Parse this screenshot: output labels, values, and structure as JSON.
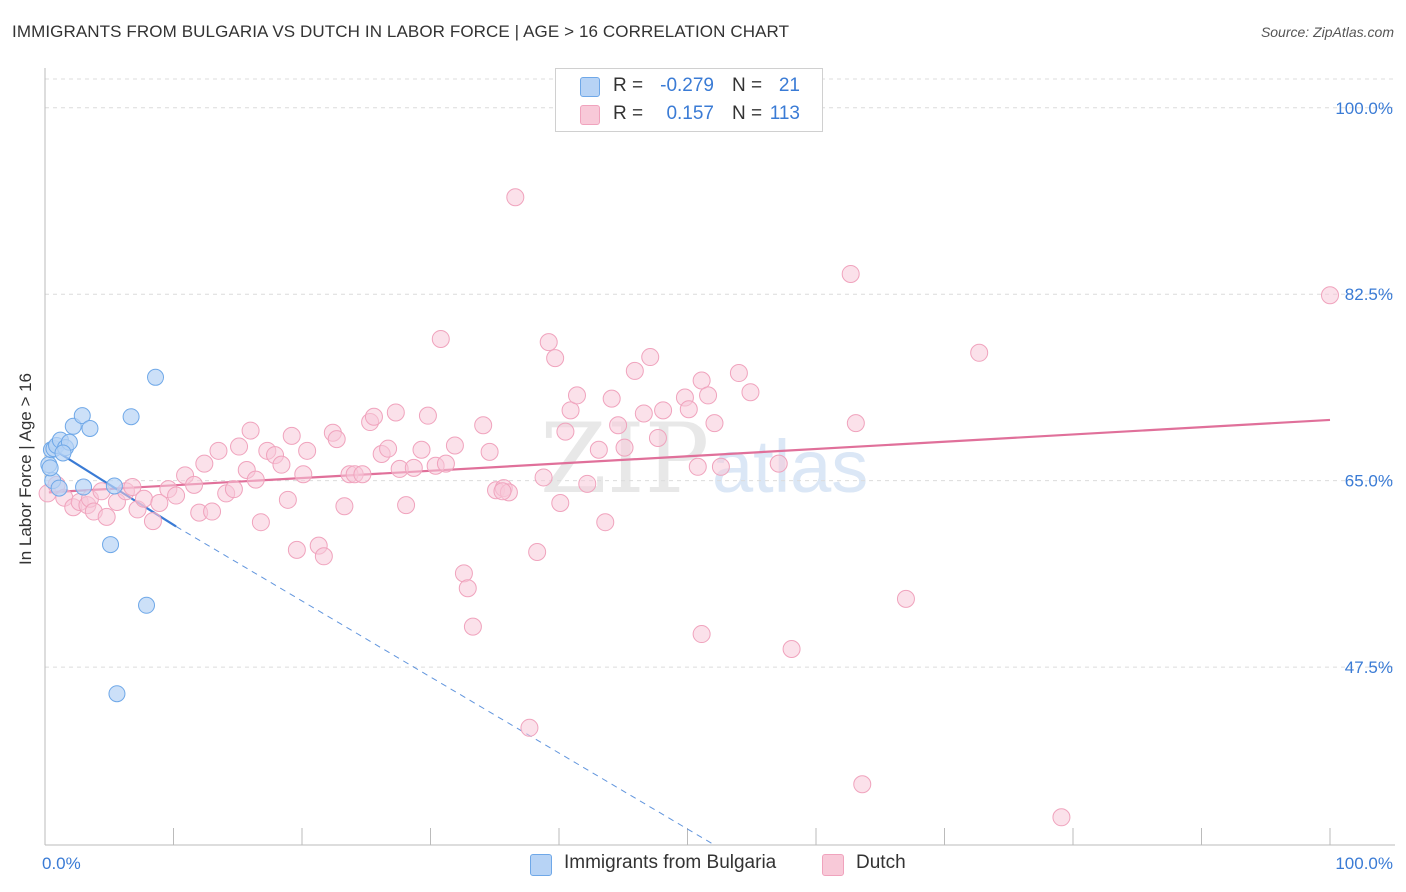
{
  "title": "IMMIGRANTS FROM BULGARIA VS DUTCH IN LABOR FORCE | AGE > 16 CORRELATION CHART",
  "source": "Source: ZipAtlas.com",
  "watermark": {
    "zip": "ZIP",
    "atlas": "atlas"
  },
  "colors": {
    "bulgaria": "#6fa8e8",
    "bulgaria_fill": "#b7d3f5",
    "bulgaria_line": "#3a7bd5",
    "dutch": "#f0a3bd",
    "dutch_fill": "#f8c9d8",
    "dutch_line": "#e0709a",
    "tick_label": "#3a7bd5",
    "grid": "#dcdcdc"
  },
  "legend": {
    "rows": [
      {
        "r_label": "R =",
        "r_value": "-0.279",
        "n_label": "N =",
        "n_value": "21"
      },
      {
        "r_label": "R =",
        "r_value": "0.157",
        "n_label": "N =",
        "n_value": "113"
      }
    ]
  },
  "bottom_legend": {
    "bulgaria": "Immigrants from Bulgaria",
    "dutch": "Dutch"
  },
  "chart_data": {
    "type": "scatter",
    "title": "IMMIGRANTS FROM BULGARIA VS DUTCH IN LABOR FORCE | AGE > 16 CORRELATION CHART",
    "xlabel": "",
    "ylabel": "In Labor Force | Age > 16",
    "xlim": [
      0,
      100
    ],
    "ylim": [
      30.8,
      102.7
    ],
    "x_tick_labels": [
      "0.0%",
      "100.0%"
    ],
    "y_ticks": [
      47.5,
      65.0,
      82.5,
      100.0
    ],
    "y_tick_labels": [
      "47.5%",
      "65.0%",
      "82.5%",
      "100.0%"
    ],
    "grid": true,
    "series": [
      {
        "name": "Immigrants from Bulgaria",
        "R": -0.279,
        "N": 21,
        "trend": {
          "x": [
            0.3,
            10.2
          ],
          "y": [
            68.2,
            60.7
          ]
        },
        "trend_dashed": {
          "x": [
            10.2,
            52.1
          ],
          "y": [
            60.7,
            30.8
          ]
        },
        "points": [
          [
            0.3,
            66.5
          ],
          [
            0.5,
            67.9
          ],
          [
            0.7,
            68.0
          ],
          [
            0.9,
            68.3
          ],
          [
            1.2,
            68.8
          ],
          [
            1.6,
            68.1
          ],
          [
            1.9,
            68.6
          ],
          [
            2.2,
            70.1
          ],
          [
            2.9,
            71.1
          ],
          [
            3.5,
            69.9
          ],
          [
            0.6,
            65.0
          ],
          [
            1.1,
            64.3
          ],
          [
            3.0,
            64.4
          ],
          [
            5.4,
            64.5
          ],
          [
            8.6,
            74.7
          ],
          [
            6.7,
            71.0
          ],
          [
            5.1,
            59.0
          ],
          [
            7.9,
            53.3
          ],
          [
            5.6,
            45.0
          ],
          [
            1.4,
            67.6
          ],
          [
            0.4,
            66.2
          ]
        ]
      },
      {
        "name": "Dutch",
        "R": 0.157,
        "N": 113,
        "trend": {
          "x": [
            0.3,
            100
          ],
          "y": [
            63.9,
            70.7
          ]
        },
        "points": [
          [
            0.2,
            63.8
          ],
          [
            0.9,
            64.6
          ],
          [
            1.5,
            63.4
          ],
          [
            2.2,
            62.5
          ],
          [
            2.7,
            63.0
          ],
          [
            3.3,
            62.7
          ],
          [
            3.5,
            63.3
          ],
          [
            3.8,
            62.1
          ],
          [
            4.4,
            64.0
          ],
          [
            4.8,
            61.6
          ],
          [
            5.6,
            63.0
          ],
          [
            6.3,
            64.0
          ],
          [
            6.8,
            64.4
          ],
          [
            7.2,
            62.3
          ],
          [
            7.7,
            63.3
          ],
          [
            8.4,
            61.2
          ],
          [
            8.9,
            62.9
          ],
          [
            9.6,
            64.2
          ],
          [
            10.2,
            63.6
          ],
          [
            10.9,
            65.5
          ],
          [
            11.6,
            64.6
          ],
          [
            12.0,
            62.0
          ],
          [
            12.4,
            66.6
          ],
          [
            13.0,
            62.1
          ],
          [
            13.5,
            67.8
          ],
          [
            14.1,
            63.8
          ],
          [
            14.7,
            64.2
          ],
          [
            15.1,
            68.2
          ],
          [
            15.7,
            66.0
          ],
          [
            16.0,
            69.7
          ],
          [
            16.4,
            65.1
          ],
          [
            16.8,
            61.1
          ],
          [
            17.3,
            67.8
          ],
          [
            17.9,
            67.4
          ],
          [
            18.4,
            66.5
          ],
          [
            18.9,
            63.2
          ],
          [
            19.2,
            69.2
          ],
          [
            19.6,
            58.5
          ],
          [
            20.1,
            65.6
          ],
          [
            20.4,
            67.8
          ],
          [
            21.3,
            58.9
          ],
          [
            21.7,
            57.9
          ],
          [
            22.4,
            69.5
          ],
          [
            22.7,
            68.9
          ],
          [
            23.3,
            62.6
          ],
          [
            23.7,
            65.6
          ],
          [
            24.1,
            65.6
          ],
          [
            24.7,
            65.6
          ],
          [
            25.3,
            70.5
          ],
          [
            25.6,
            71.0
          ],
          [
            26.2,
            67.5
          ],
          [
            26.7,
            68.0
          ],
          [
            27.3,
            71.4
          ],
          [
            27.6,
            66.1
          ],
          [
            28.1,
            62.7
          ],
          [
            28.7,
            66.2
          ],
          [
            29.3,
            67.9
          ],
          [
            29.8,
            71.1
          ],
          [
            30.4,
            66.4
          ],
          [
            30.8,
            78.3
          ],
          [
            31.2,
            66.6
          ],
          [
            31.9,
            68.3
          ],
          [
            32.6,
            56.3
          ],
          [
            32.9,
            54.9
          ],
          [
            33.3,
            51.3
          ],
          [
            34.1,
            70.2
          ],
          [
            34.6,
            67.7
          ],
          [
            35.1,
            64.1
          ],
          [
            35.7,
            64.3
          ],
          [
            36.1,
            63.9
          ],
          [
            35.6,
            64.0
          ],
          [
            36.6,
            91.6
          ],
          [
            38.3,
            58.3
          ],
          [
            38.8,
            65.3
          ],
          [
            39.2,
            78.0
          ],
          [
            39.7,
            76.5
          ],
          [
            40.1,
            62.9
          ],
          [
            40.5,
            69.6
          ],
          [
            40.9,
            71.6
          ],
          [
            41.4,
            73.0
          ],
          [
            42.2,
            64.7
          ],
          [
            43.1,
            67.9
          ],
          [
            43.6,
            61.1
          ],
          [
            44.1,
            72.7
          ],
          [
            44.6,
            70.2
          ],
          [
            45.1,
            68.1
          ],
          [
            45.9,
            75.3
          ],
          [
            46.6,
            71.3
          ],
          [
            47.1,
            76.6
          ],
          [
            47.7,
            69.0
          ],
          [
            48.1,
            71.6
          ],
          [
            49.8,
            72.8
          ],
          [
            50.1,
            71.7
          ],
          [
            50.8,
            66.3
          ],
          [
            51.1,
            74.4
          ],
          [
            51.6,
            73.0
          ],
          [
            52.1,
            70.4
          ],
          [
            52.6,
            66.3
          ],
          [
            54.0,
            75.1
          ],
          [
            54.9,
            73.3
          ],
          [
            57.1,
            66.6
          ],
          [
            58.1,
            49.2
          ],
          [
            62.7,
            84.4
          ],
          [
            63.1,
            70.4
          ],
          [
            63.6,
            36.5
          ],
          [
            72.7,
            77.0
          ],
          [
            79.1,
            33.4
          ],
          [
            37.7,
            41.8
          ],
          [
            51.1,
            50.6
          ],
          [
            67.0,
            53.9
          ],
          [
            100.0,
            82.4
          ]
        ]
      }
    ]
  }
}
